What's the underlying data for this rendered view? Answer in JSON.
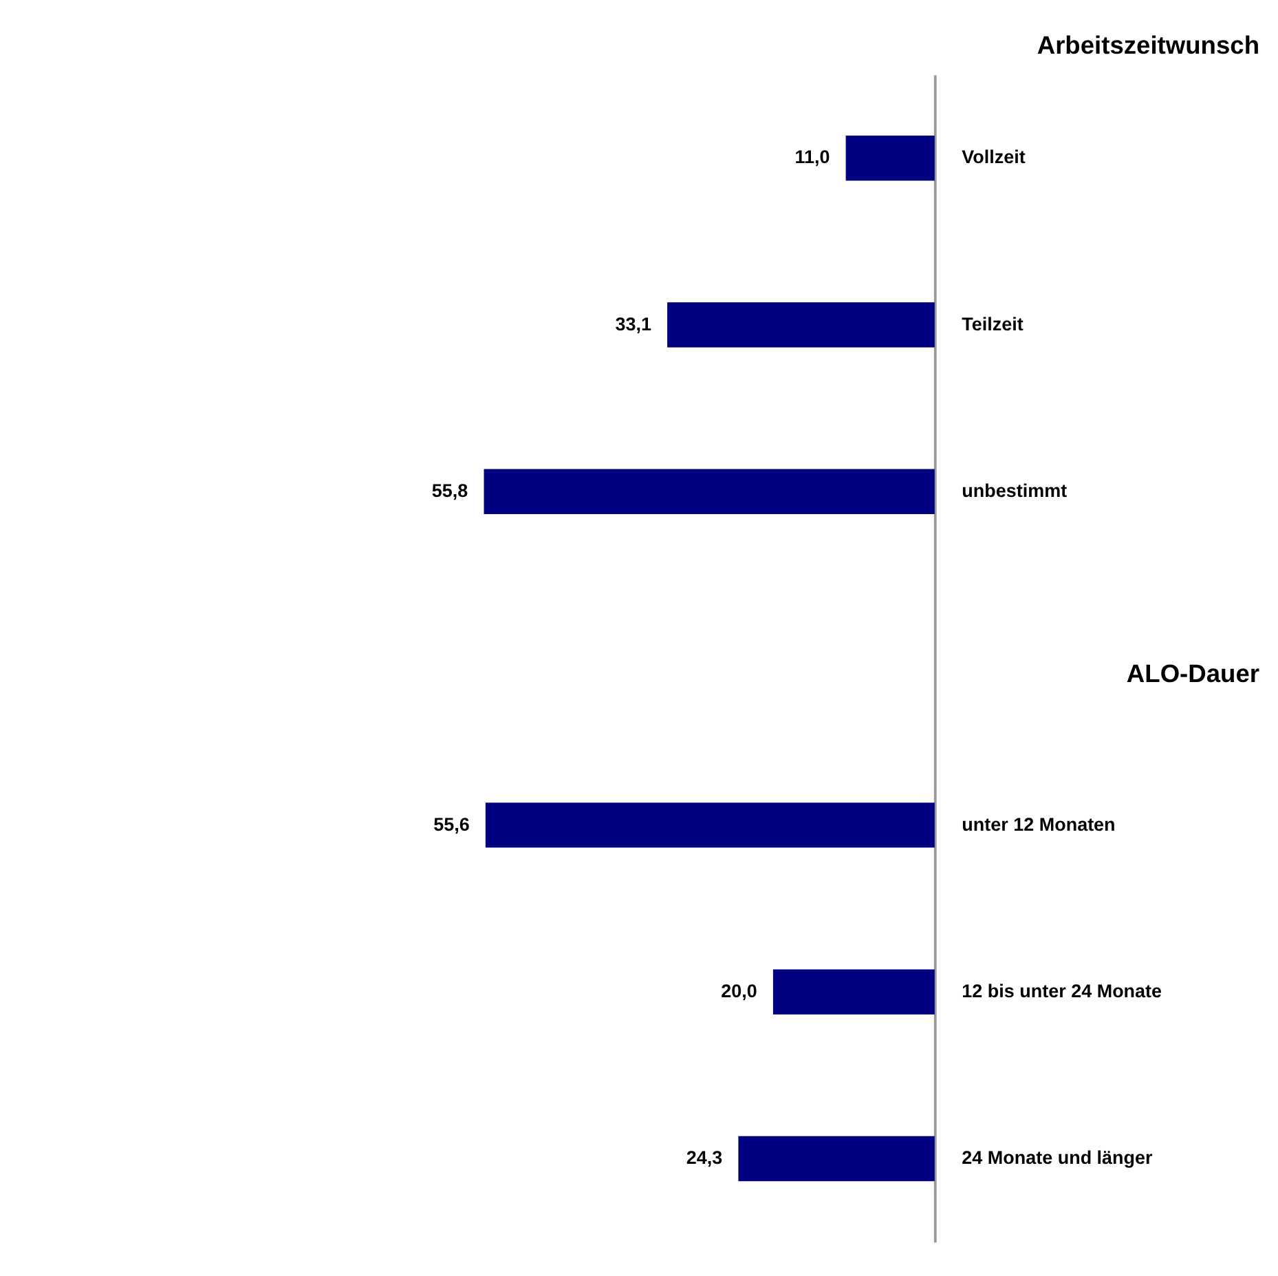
{
  "chart_data": {
    "type": "bar",
    "orientation": "horizontal",
    "title": "Arbeitszeitwunsch",
    "categories": [
      "Vollzeit",
      "Teilzeit",
      "unbestimmt",
      null,
      "unter 12 Monaten",
      "12 bis unter 24 Monate",
      "24 Monate und länger"
    ],
    "values": [
      11.0,
      33.1,
      55.8,
      null,
      55.6,
      20.0,
      24.3
    ],
    "value_labels": [
      "11,0",
      "33,1",
      "55,8",
      null,
      "55,6",
      "20,0",
      "24,3"
    ],
    "color": "#000080",
    "tick_labels": "y",
    "grid": false,
    "annotations": [
      "ALO-Dauer"
    ]
  }
}
